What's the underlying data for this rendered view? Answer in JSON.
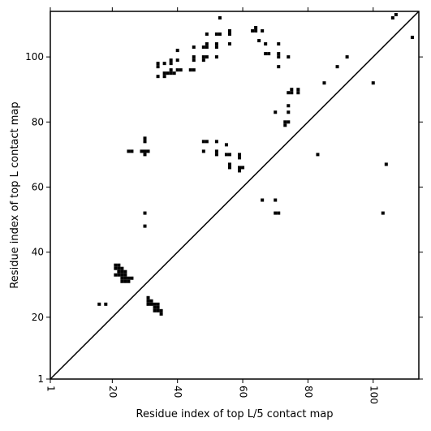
{
  "chart_data": {
    "type": "scatter",
    "xlabel": "Residue index of top L/5 contact map",
    "ylabel": "Residue index of top L contact map",
    "xlim": [
      1,
      114
    ],
    "ylim": [
      1,
      114
    ],
    "xticks": [
      1,
      20,
      40,
      60,
      80,
      100
    ],
    "yticks": [
      1,
      20,
      40,
      60,
      80,
      100
    ],
    "xtick_rotation": 90,
    "grid": false,
    "diagonal": true,
    "marker": "square",
    "color": "#000000",
    "series": [
      {
        "name": "",
        "points": [
          [
            16,
            24
          ],
          [
            18,
            24
          ],
          [
            21,
            36
          ],
          [
            22,
            36
          ],
          [
            21,
            35
          ],
          [
            22,
            35
          ],
          [
            23,
            35
          ],
          [
            22,
            34
          ],
          [
            23,
            34
          ],
          [
            24,
            34
          ],
          [
            21,
            33
          ],
          [
            22,
            33
          ],
          [
            23,
            33
          ],
          [
            24,
            33
          ],
          [
            23,
            32
          ],
          [
            24,
            32
          ],
          [
            25,
            32
          ],
          [
            26,
            32
          ],
          [
            23,
            31
          ],
          [
            24,
            31
          ],
          [
            25,
            31
          ],
          [
            31,
            26
          ],
          [
            31,
            25
          ],
          [
            32,
            25
          ],
          [
            31,
            24
          ],
          [
            32,
            24
          ],
          [
            33,
            24
          ],
          [
            34,
            24
          ],
          [
            33,
            23
          ],
          [
            34,
            23
          ],
          [
            33,
            22
          ],
          [
            34,
            22
          ],
          [
            35,
            22
          ],
          [
            35,
            21
          ],
          [
            25,
            71
          ],
          [
            26,
            71
          ],
          [
            29,
            71
          ],
          [
            30,
            71
          ],
          [
            31,
            71
          ],
          [
            30,
            70
          ],
          [
            30,
            75
          ],
          [
            30,
            74
          ],
          [
            30,
            52
          ],
          [
            30,
            48
          ],
          [
            34,
            98
          ],
          [
            34,
            97
          ],
          [
            36,
            98
          ],
          [
            38,
            99
          ],
          [
            38,
            98
          ],
          [
            40,
            99
          ],
          [
            40,
            102
          ],
          [
            34,
            94
          ],
          [
            36,
            95
          ],
          [
            37,
            95
          ],
          [
            38,
            95
          ],
          [
            39,
            95
          ],
          [
            36,
            94
          ],
          [
            38,
            96
          ],
          [
            40,
            96
          ],
          [
            41,
            96
          ],
          [
            44,
            96
          ],
          [
            45,
            96
          ],
          [
            45,
            103
          ],
          [
            45,
            100
          ],
          [
            45,
            99
          ],
          [
            48,
            103
          ],
          [
            49,
            104
          ],
          [
            49,
            103
          ],
          [
            49,
            107
          ],
          [
            48,
            100
          ],
          [
            49,
            100
          ],
          [
            48,
            99
          ],
          [
            52,
            104
          ],
          [
            52,
            103
          ],
          [
            52,
            107
          ],
          [
            53,
            107
          ],
          [
            52,
            100
          ],
          [
            53,
            112
          ],
          [
            56,
            108
          ],
          [
            56,
            107
          ],
          [
            56,
            104
          ],
          [
            63,
            108
          ],
          [
            64,
            108
          ],
          [
            64,
            109
          ],
          [
            66,
            108
          ],
          [
            65,
            105
          ],
          [
            67,
            104
          ],
          [
            67,
            101
          ],
          [
            68,
            101
          ],
          [
            71,
            104
          ],
          [
            71,
            101
          ],
          [
            71,
            100
          ],
          [
            71,
            97
          ],
          [
            74,
            100
          ],
          [
            48,
            74
          ],
          [
            49,
            74
          ],
          [
            52,
            74
          ],
          [
            55,
            73
          ],
          [
            48,
            71
          ],
          [
            52,
            71
          ],
          [
            52,
            70
          ],
          [
            55,
            70
          ],
          [
            56,
            70
          ],
          [
            59,
            70
          ],
          [
            59,
            69
          ],
          [
            56,
            67
          ],
          [
            56,
            66
          ],
          [
            59,
            66
          ],
          [
            60,
            66
          ],
          [
            59,
            65
          ],
          [
            70,
            83
          ],
          [
            74,
            85
          ],
          [
            74,
            83
          ],
          [
            73,
            80
          ],
          [
            74,
            80
          ],
          [
            73,
            79
          ],
          [
            74,
            89
          ],
          [
            75,
            89
          ],
          [
            75,
            90
          ],
          [
            77,
            90
          ],
          [
            77,
            89
          ],
          [
            66,
            56
          ],
          [
            70,
            56
          ],
          [
            70,
            52
          ],
          [
            71,
            52
          ],
          [
            83,
            70
          ],
          [
            85,
            92
          ],
          [
            89,
            97
          ],
          [
            92,
            100
          ],
          [
            100,
            92
          ],
          [
            103,
            52
          ],
          [
            104,
            67
          ],
          [
            106,
            112
          ],
          [
            107,
            113
          ],
          [
            112,
            106
          ]
        ]
      }
    ]
  }
}
